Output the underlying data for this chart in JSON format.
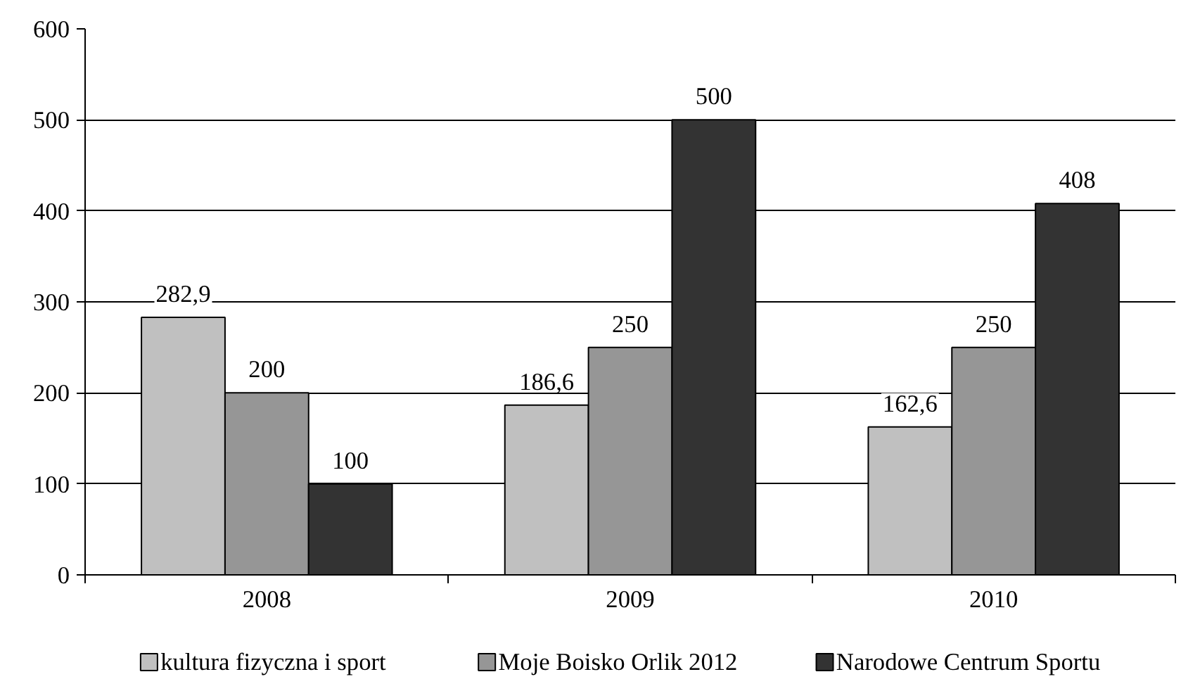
{
  "chart_data": {
    "type": "bar",
    "categories": [
      "2008",
      "2009",
      "2010"
    ],
    "series": [
      {
        "name": "kultura fizyczna i sport",
        "color": "#c0c0c0",
        "values": [
          282.9,
          186.6,
          162.6
        ],
        "value_labels": [
          "282,9",
          "186,6",
          "162,6"
        ]
      },
      {
        "name": "Moje Boisko Orlik 2012",
        "color": "#969696",
        "values": [
          200,
          250,
          250
        ],
        "value_labels": [
          "200",
          "250",
          "250"
        ]
      },
      {
        "name": "Narodowe Centrum Sportu",
        "color": "#333333",
        "values": [
          100,
          500,
          408
        ],
        "value_labels": [
          "100",
          "500",
          "408"
        ]
      }
    ],
    "ylim": [
      0,
      600
    ],
    "yticks": [
      0,
      100,
      200,
      300,
      400,
      500,
      600
    ],
    "grid": "y",
    "legend": "bottom"
  }
}
